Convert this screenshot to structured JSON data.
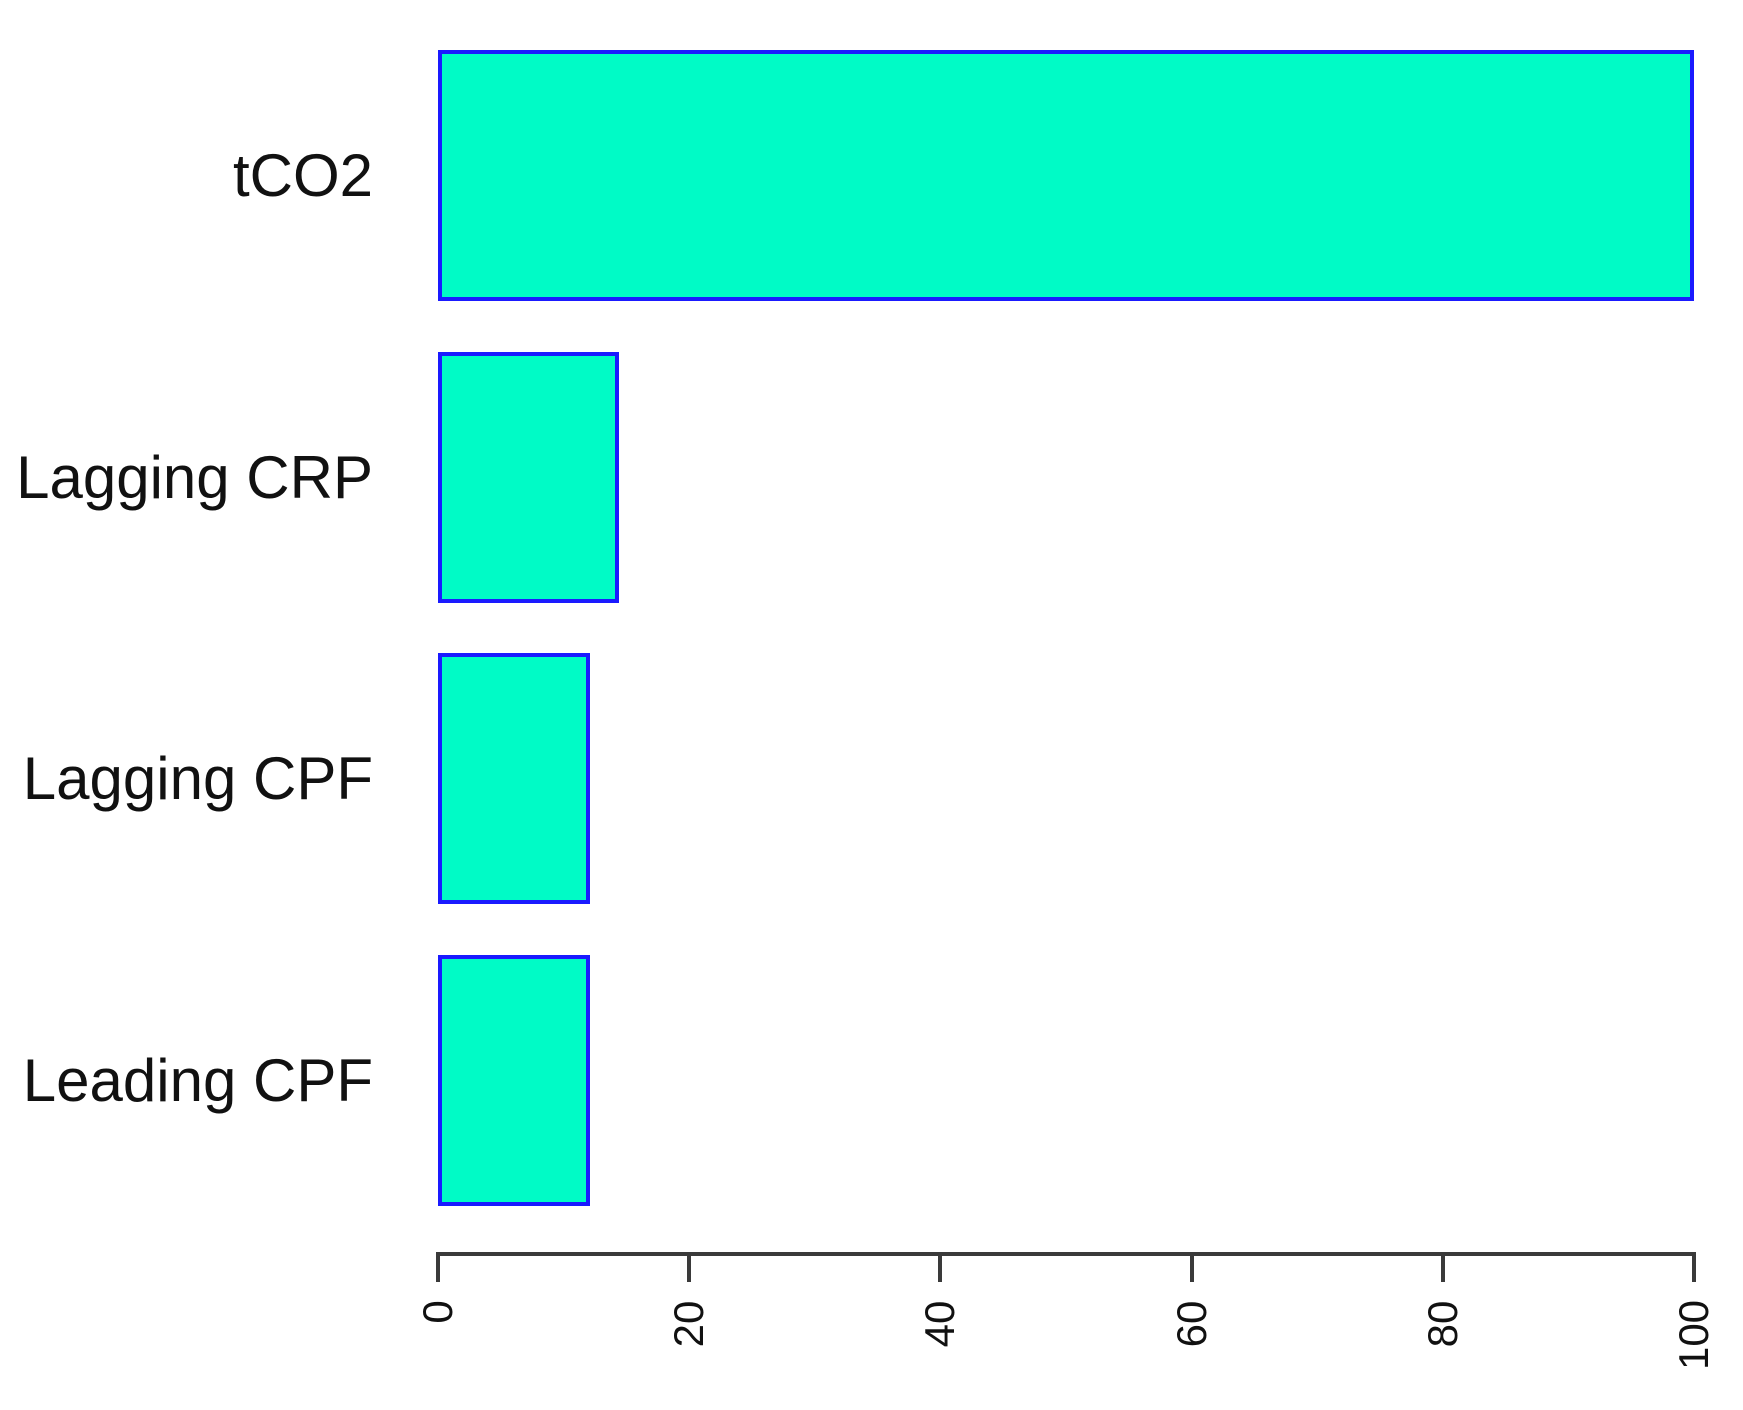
{
  "chart_data": {
    "type": "bar",
    "orientation": "horizontal",
    "title": "",
    "subtitle": "",
    "xlabel": "",
    "ylabel": "",
    "categories": [
      "tCO2",
      "Lagging CRP",
      "Lagging CPF",
      "Leading CPF"
    ],
    "values": [
      100,
      14.4,
      12.1,
      12.1
    ],
    "xlim": [
      0,
      100
    ],
    "x_ticks": [
      "0",
      "20",
      "40",
      "60",
      "80",
      "100"
    ],
    "x_tick_values": [
      0,
      20,
      40,
      60,
      80,
      100
    ],
    "grid": false,
    "legend": "none",
    "tick_label_rotation_deg": -90,
    "colors": {
      "bar_fill": "#00FBC6",
      "bar_border": "#1A1AFF",
      "axis": "#3A3A3A",
      "text": "#111111"
    }
  }
}
